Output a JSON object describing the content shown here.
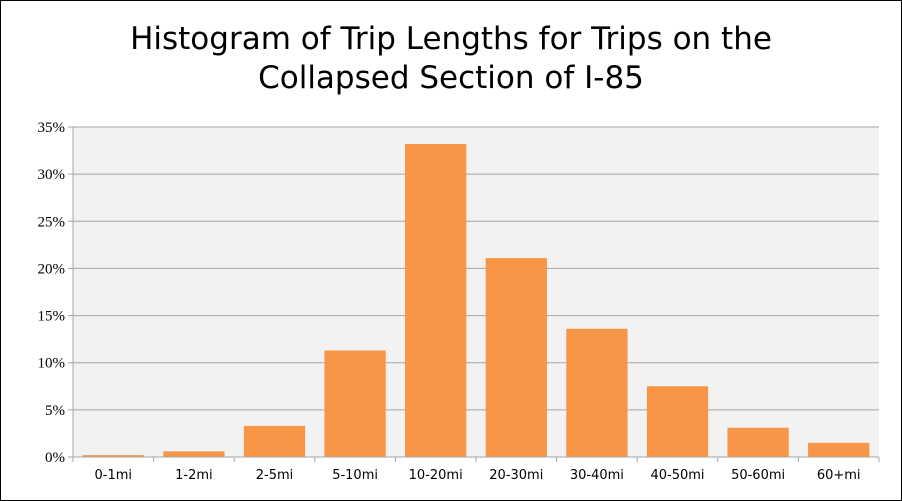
{
  "chart_data": {
    "type": "bar",
    "title_lines": [
      "Histogram of Trip Lengths for Trips on the",
      "Collapsed Section of I-85"
    ],
    "xlabel": "",
    "ylabel": "",
    "categories": [
      "0-1mi",
      "1-2mi",
      "2-5mi",
      "5-10mi",
      "10-20mi",
      "20-30mi",
      "30-40mi",
      "40-50mi",
      "50-60mi",
      "60+mi"
    ],
    "values": [
      0.2,
      0.6,
      3.3,
      11.3,
      33.2,
      21.1,
      13.6,
      7.5,
      3.1,
      1.5
    ],
    "ylim": [
      0,
      35
    ],
    "yticks": [
      "0%",
      "5%",
      "10%",
      "15%",
      "20%",
      "25%",
      "30%",
      "35%"
    ],
    "grid": true,
    "legend": "none",
    "colors": {
      "bar": "#F79646",
      "plot_background": "#F2F2F2",
      "gridline": "#A6A6A6"
    }
  }
}
